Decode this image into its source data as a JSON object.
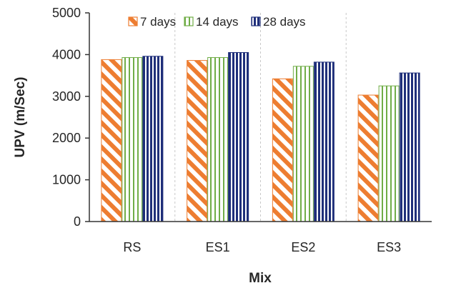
{
  "chart_data": {
    "type": "bar",
    "title": "",
    "xlabel": "Mix",
    "ylabel": "UPV (m/Sec)",
    "categories": [
      "RS",
      "ES1",
      "ES2",
      "ES3"
    ],
    "ylim": [
      0,
      5000
    ],
    "yticks": [
      0,
      1000,
      2000,
      3000,
      4000,
      5000
    ],
    "grid": "vertical dashed separators between groups",
    "legend_position": "top",
    "series": [
      {
        "name": "7 days",
        "values": [
          3880,
          3860,
          3420,
          3030
        ],
        "color": "#ED7D31",
        "pattern": "diagonal-hatch"
      },
      {
        "name": "14 days",
        "values": [
          3930,
          3930,
          3720,
          3250
        ],
        "color": "#70AD47",
        "pattern": "vertical-lines"
      },
      {
        "name": "28 days",
        "values": [
          3960,
          4050,
          3820,
          3560
        ],
        "color": "#1F2F7A",
        "pattern": "vertical-lines"
      }
    ]
  }
}
